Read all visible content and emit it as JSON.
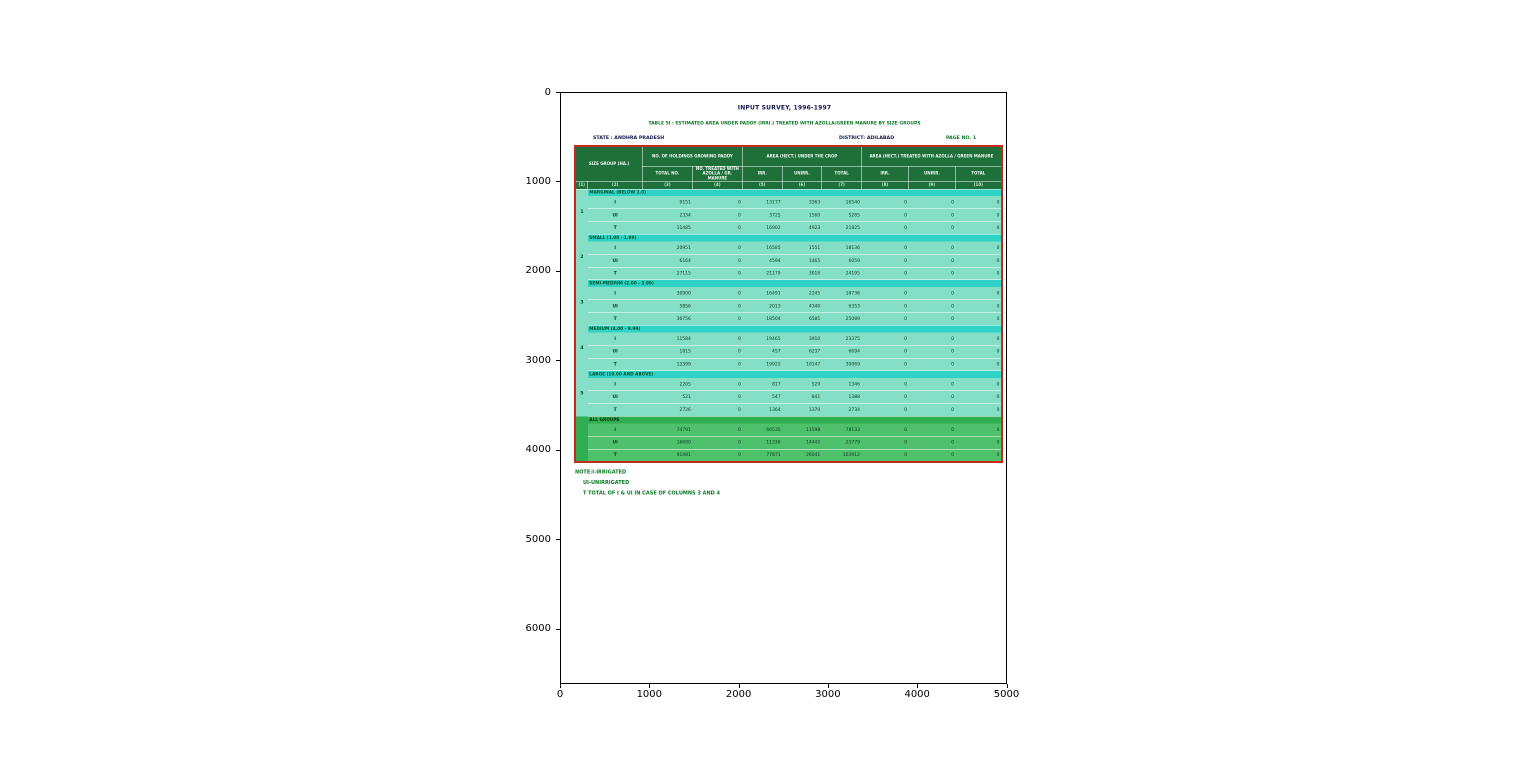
{
  "figure": {
    "x_ticks": [
      "0",
      "1000",
      "2000",
      "3000",
      "4000",
      "5000"
    ],
    "y_ticks": [
      "0",
      "1000",
      "2000",
      "3000",
      "4000",
      "5000",
      "6000"
    ]
  },
  "chart_data": {
    "type": "table",
    "title": "INPUT SURVEY, 1996-1997",
    "subtitle": "TABLE 5I : ESTIMATED AREA UNDER PADDY (IRRI.) TREATED WITH AZOLLA/GREEN MANURE BY SIZE GROUPS",
    "state": "STATE : ANDHRA PRADESH",
    "district": "DISTRICT: ADILABAD",
    "page": "PAGE NO. 1",
    "header": {
      "group_headers": [
        "SIZE GROUP (HA.)",
        "NO. OF HOLDINGS GROWING PADDY",
        "AREA (HECT.) UNDER THE CROP",
        "AREA (HECT.) TREATED WITH AZOLLA / GREEN MANURE"
      ],
      "sub_headers": [
        "TOTAL NO.",
        "NO. TREATED WITH AZOLLA / GR. MANURE",
        "IRR.",
        "UNIRR.",
        "TOTAL",
        "IRR.",
        "UNIRR.",
        "TOTAL"
      ],
      "column_numbers": [
        "(1)",
        "(2)",
        "(3)",
        "(4)",
        "(5)",
        "(6)",
        "(7)",
        "(8)",
        "(9)",
        "(10)"
      ]
    },
    "groups": [
      {
        "sl_no": "1",
        "label": "MARGINAL (BELOW 1.0)",
        "rows": [
          [
            "I",
            "9151",
            "0",
            "13177",
            "3363",
            "16540",
            "0",
            "0",
            "0"
          ],
          [
            "UI",
            "2334",
            "0",
            "3725",
            "1560",
            "5285",
            "0",
            "0",
            "0"
          ],
          [
            "T",
            "11485",
            "0",
            "16902",
            "4923",
            "21825",
            "0",
            "0",
            "0"
          ]
        ]
      },
      {
        "sl_no": "2",
        "label": "SMALL (1.00 - 1.99)",
        "rows": [
          [
            "I",
            "20951",
            "0",
            "16585",
            "1551",
            "18136",
            "0",
            "0",
            "0"
          ],
          [
            "UI",
            "6164",
            "0",
            "4594",
            "1465",
            "6059",
            "0",
            "0",
            "0"
          ],
          [
            "T",
            "27115",
            "0",
            "21179",
            "3016",
            "24195",
            "0",
            "0",
            "0"
          ]
        ]
      },
      {
        "sl_no": "3",
        "label": "SEMI-MEDIUM (2.00 - 3.99)",
        "rows": [
          [
            "I",
            "30900",
            "0",
            "16491",
            "2245",
            "18736",
            "0",
            "0",
            "0"
          ],
          [
            "UI",
            "5856",
            "0",
            "2013",
            "4340",
            "6353",
            "0",
            "0",
            "0"
          ],
          [
            "T",
            "36756",
            "0",
            "18504",
            "6585",
            "25089",
            "0",
            "0",
            "0"
          ]
        ]
      },
      {
        "sl_no": "4",
        "label": "MEDIUM (4.00 - 9.99)",
        "rows": [
          [
            "I",
            "11584",
            "0",
            "19465",
            "3910",
            "23375",
            "0",
            "0",
            "0"
          ],
          [
            "UI",
            "1815",
            "0",
            "457",
            "6237",
            "6694",
            "0",
            "0",
            "0"
          ],
          [
            "T",
            "13399",
            "0",
            "19922",
            "10147",
            "30069",
            "0",
            "0",
            "0"
          ]
        ]
      },
      {
        "sl_no": "5",
        "label": "LARGE (10.00 AND ABOVE)",
        "rows": [
          [
            "I",
            "2205",
            "0",
            "817",
            "529",
            "1346",
            "0",
            "0",
            "0"
          ],
          [
            "UI",
            "521",
            "0",
            "547",
            "841",
            "1388",
            "0",
            "0",
            "0"
          ],
          [
            "T",
            "2726",
            "0",
            "1364",
            "1370",
            "2734",
            "0",
            "0",
            "0"
          ]
        ]
      },
      {
        "sl_no": "",
        "label": "ALL GROUPS",
        "all": true,
        "rows": [
          [
            "I",
            "74791",
            "0",
            "66535",
            "11598",
            "78133",
            "0",
            "0",
            "0"
          ],
          [
            "UI",
            "16690",
            "0",
            "11336",
            "14443",
            "25779",
            "0",
            "0",
            "0"
          ],
          [
            "T",
            "91481",
            "0",
            "77871",
            "26041",
            "103912",
            "0",
            "0",
            "0"
          ]
        ]
      }
    ],
    "notes": [
      "NOTE:I-IRRIGATED",
      "UI-UNIRRIGATED",
      "T    TOTAL OF I & UI IN CASE OF COLUMNS 3 AND 4"
    ]
  },
  "colors": {
    "header_green": "#1e6f3a",
    "band_cyan": "#2ed3c6",
    "row_teal": "#84dfc6",
    "all_groups_green": "#4fc06c",
    "all_label_green": "#2fae52",
    "table_border_red": "#c8281e",
    "note_green": "#0b7a28",
    "title_navy": "#12194f"
  }
}
